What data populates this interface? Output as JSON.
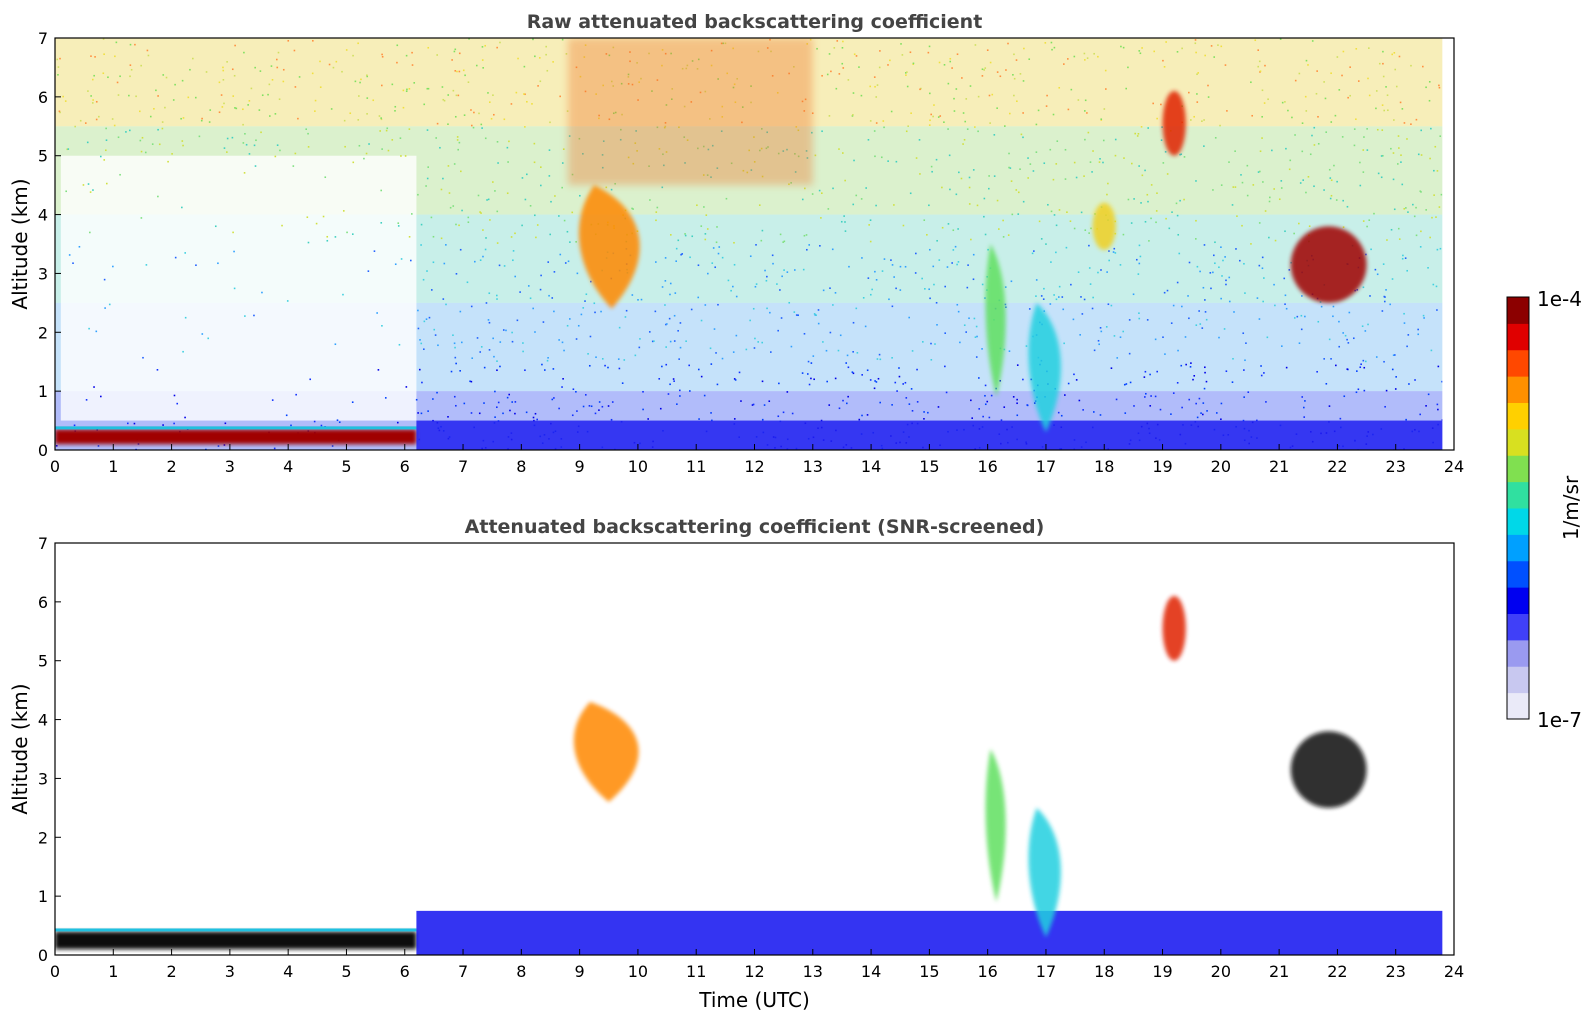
{
  "chart_data": [
    {
      "type": "heatmap",
      "title": "Raw attenuated backscattering coefficient",
      "ylabel": "Altitude (km)",
      "xlabel": "",
      "xlim": [
        0,
        24
      ],
      "ylim": [
        0,
        7
      ],
      "xticks": [
        "0",
        "1",
        "2",
        "3",
        "4",
        "5",
        "6",
        "7",
        "8",
        "9",
        "10",
        "11",
        "12",
        "13",
        "14",
        "15",
        "16",
        "17",
        "18",
        "19",
        "20",
        "21",
        "22",
        "23",
        "24"
      ],
      "yticks": [
        "0",
        "1",
        "2",
        "3",
        "4",
        "5",
        "6",
        "7"
      ],
      "features": [
        {
          "kind": "boundary-layer",
          "t": [
            0,
            6.2
          ],
          "alt": [
            0.1,
            0.35
          ],
          "level": "max"
        },
        {
          "kind": "boundary-layer-weak",
          "t": [
            6.2,
            23.8
          ],
          "alt": [
            0,
            0.5
          ],
          "level": "low"
        },
        {
          "kind": "cloud-plume",
          "t": [
            8.8,
            10.3
          ],
          "alt": [
            2.4,
            4.5
          ],
          "level": "orange"
        },
        {
          "kind": "cloud-column",
          "t": [
            15.9,
            16.4
          ],
          "alt": [
            0.9,
            3.5
          ],
          "level": "green"
        },
        {
          "kind": "cloud-column",
          "t": [
            16.6,
            17.4
          ],
          "alt": [
            0.3,
            2.5
          ],
          "level": "cyan"
        },
        {
          "kind": "cloud",
          "t": [
            17.8,
            18.2
          ],
          "alt": [
            3.4,
            4.2
          ],
          "level": "yellow"
        },
        {
          "kind": "cloud",
          "t": [
            19.0,
            19.4
          ],
          "alt": [
            5.0,
            6.1
          ],
          "level": "red"
        },
        {
          "kind": "cloud",
          "t": [
            21.2,
            22.5
          ],
          "alt": [
            2.5,
            3.8
          ],
          "level": "dark-red"
        }
      ]
    },
    {
      "type": "heatmap",
      "title": "Attenuated backscattering coefficient (SNR-screened)",
      "ylabel": "Altitude (km)",
      "xlabel": "Time (UTC)",
      "xlim": [
        0,
        24
      ],
      "ylim": [
        0,
        7
      ],
      "xticks": [
        "0",
        "1",
        "2",
        "3",
        "4",
        "5",
        "6",
        "7",
        "8",
        "9",
        "10",
        "11",
        "12",
        "13",
        "14",
        "15",
        "16",
        "17",
        "18",
        "19",
        "20",
        "21",
        "22",
        "23",
        "24"
      ],
      "yticks": [
        "0",
        "1",
        "2",
        "3",
        "4",
        "5",
        "6",
        "7"
      ],
      "features": [
        {
          "kind": "boundary-layer",
          "t": [
            0,
            6.2
          ],
          "alt": [
            0.1,
            0.4
          ],
          "level": "saturated-black"
        },
        {
          "kind": "boundary-layer-weak",
          "t": [
            6.2,
            23.8
          ],
          "alt": [
            0,
            0.75
          ],
          "level": "blue"
        },
        {
          "kind": "cloud-plume",
          "t": [
            8.7,
            10.3
          ],
          "alt": [
            2.6,
            4.3
          ],
          "level": "orange"
        },
        {
          "kind": "cloud-column",
          "t": [
            15.9,
            16.4
          ],
          "alt": [
            0.9,
            3.5
          ],
          "level": "green"
        },
        {
          "kind": "cloud-column",
          "t": [
            16.6,
            17.4
          ],
          "alt": [
            0.3,
            2.5
          ],
          "level": "cyan"
        },
        {
          "kind": "cloud",
          "t": [
            19.0,
            19.4
          ],
          "alt": [
            5.0,
            6.1
          ],
          "level": "red"
        },
        {
          "kind": "cloud",
          "t": [
            21.2,
            22.5
          ],
          "alt": [
            2.5,
            3.8
          ],
          "level": "saturated-black"
        }
      ]
    }
  ],
  "colorbar": {
    "label": "1/m/sr",
    "max_label": "1e-4",
    "min_label": "1e-7",
    "scale": "log",
    "colormap": [
      "#eaeaf8",
      "#c8c8f0",
      "#9a9af0",
      "#4040f8",
      "#0000f0",
      "#0050ff",
      "#00a0ff",
      "#00d8e8",
      "#30e0a0",
      "#80e050",
      "#d8e020",
      "#ffd000",
      "#ff9000",
      "#ff4800",
      "#e00000",
      "#8c0000"
    ]
  }
}
